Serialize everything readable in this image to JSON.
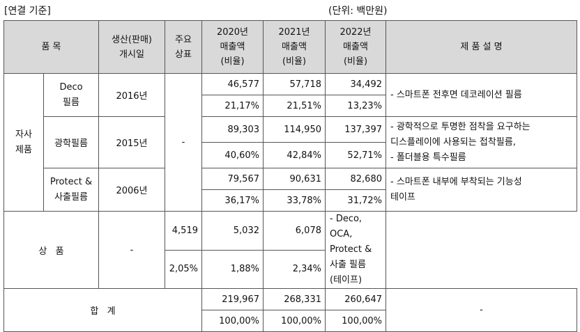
{
  "caption_left": "[연결 기준]",
  "caption_right": "(단위: 백만원)",
  "headers": {
    "item": "품 목",
    "launch": [
      "생산(판매)",
      "개시일"
    ],
    "brand": [
      "주요",
      "상표"
    ],
    "y2020": [
      "2020년",
      "매출액",
      "(비율)"
    ],
    "y2021": [
      "2021년",
      "매출액",
      "(비율)"
    ],
    "y2022": [
      "2022년",
      "매출액",
      "(비율)"
    ],
    "desc": "제 품 설 명"
  },
  "group_own": [
    "자사",
    "제품"
  ],
  "brand_value": "-",
  "rows": [
    {
      "name": [
        "Deco",
        "필름"
      ],
      "launch": "2016년",
      "sales": [
        "46,577",
        "57,718",
        "34,492"
      ],
      "ratio": [
        "21,17%",
        "21,51%",
        "13,23%"
      ],
      "desc": [
        "- 스마트폰 전후면 데코레이션 필름"
      ]
    },
    {
      "name": [
        "광학필름"
      ],
      "launch": "2015년",
      "sales": [
        "89,303",
        "114,950",
        "137,397"
      ],
      "ratio": [
        "40,60%",
        "42,84%",
        "52,71%"
      ],
      "desc": [
        "- 광학적으로 투명한 점착을 요구하는",
        "디스플레이에 사용되는 접착필름,",
        "- 폴더블용 특수필름"
      ]
    },
    {
      "name": [
        "Protect &",
        "사출필름"
      ],
      "launch": "2006년",
      "sales": [
        "79,567",
        "90,631",
        "82,680"
      ],
      "ratio": [
        "36,17%",
        "33,78%",
        "31,72%"
      ],
      "desc": [
        "- 스마트폰 내부에 부착되는 기능성",
        "테이프"
      ]
    }
  ],
  "goods": {
    "name": "상   품",
    "launch": "-",
    "sales": [
      "4,519",
      "5,032",
      "6,078"
    ],
    "ratio": [
      "2,05%",
      "1,88%",
      "2,34%"
    ],
    "desc": [
      "- Deco, OCA, Protect & 사출 필름",
      "(테이프)"
    ]
  },
  "total": {
    "name": "합   계",
    "sales": [
      "219,967",
      "268,331",
      "260,647"
    ],
    "ratio": [
      "100,00%",
      "100,00%",
      "100,00%"
    ],
    "desc": "-"
  }
}
